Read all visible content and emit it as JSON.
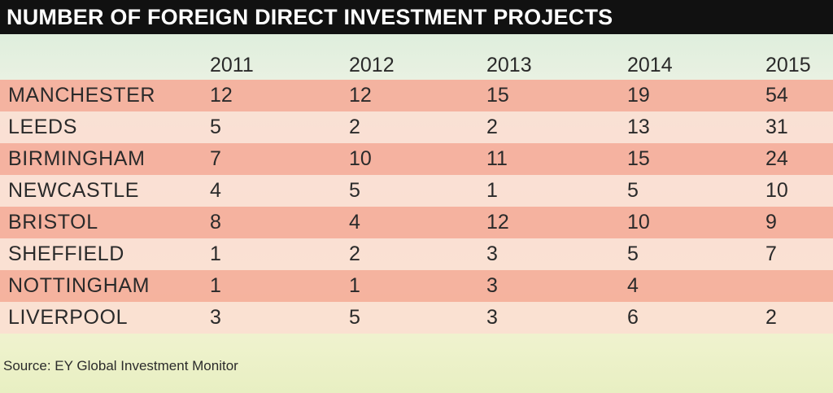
{
  "title": "NUMBER OF FOREIGN DIRECT INVESTMENT PROJECTS",
  "source": "Source: EY Global Investment Monitor",
  "colors": {
    "title_bg": "#111111",
    "row_dark": "#f5aa96",
    "row_light": "#fbded2"
  },
  "chart_data": {
    "type": "table",
    "title": "NUMBER OF FOREIGN DIRECT INVESTMENT PROJECTS",
    "columns": [
      "2011",
      "2012",
      "2013",
      "2014",
      "2015"
    ],
    "rows": [
      {
        "label": "MANCHESTER",
        "values": [
          "12",
          "12",
          "15",
          "19",
          "54"
        ]
      },
      {
        "label": "LEEDS",
        "values": [
          "5",
          "2",
          "2",
          "13",
          "31"
        ]
      },
      {
        "label": "BIRMINGHAM",
        "values": [
          "7",
          "10",
          "11",
          "15",
          "24"
        ]
      },
      {
        "label": "NEWCASTLE",
        "values": [
          "4",
          "5",
          "1",
          "5",
          "10"
        ]
      },
      {
        "label": "BRISTOL",
        "values": [
          "8",
          "4",
          "12",
          "10",
          "9"
        ]
      },
      {
        "label": "SHEFFIELD",
        "values": [
          "1",
          "2",
          "3",
          "5",
          "7"
        ]
      },
      {
        "label": "NOTTINGHAM",
        "values": [
          "1",
          "1",
          "3",
          "4",
          ""
        ]
      },
      {
        "label": "LIVERPOOL",
        "values": [
          "3",
          "5",
          "3",
          "6",
          "2"
        ]
      }
    ]
  }
}
